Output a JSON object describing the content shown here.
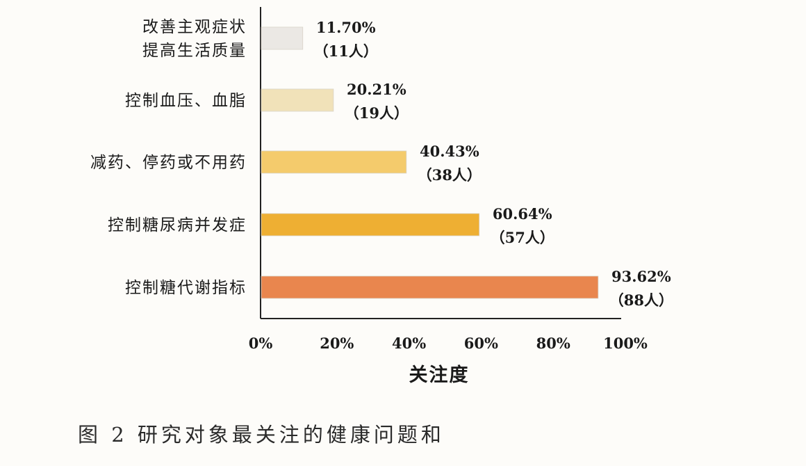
{
  "caption": "图 2   研究对象最关注的健康问题和",
  "chart_data": {
    "type": "bar",
    "orientation": "horizontal",
    "title": "",
    "xlabel": "关注度",
    "ylabel": "",
    "xlim": [
      0,
      100
    ],
    "x_ticks": [
      "0%",
      "20%",
      "40%",
      "60%",
      "80%",
      "100%"
    ],
    "categories": [
      [
        "改善主观症状",
        "提高生活质量"
      ],
      [
        "控制血压、血脂"
      ],
      [
        "减药、停药或不用药"
      ],
      [
        "控制糖尿病并发症"
      ],
      [
        "控制糖代谢指标"
      ]
    ],
    "values": [
      11.7,
      20.21,
      40.43,
      60.64,
      93.62
    ],
    "value_labels": [
      "11.70%",
      "20.21%",
      "40.43%",
      "60.64%",
      "93.62%"
    ],
    "count_labels": [
      "（11人）",
      "（19人）",
      "（38人）",
      "（57人）",
      "（88人）"
    ],
    "bar_colors": [
      "#ebe8e4",
      "#f1e2b9",
      "#f4cb6c",
      "#eeaf33",
      "#e9864e"
    ],
    "grid": false,
    "legend": "none"
  }
}
